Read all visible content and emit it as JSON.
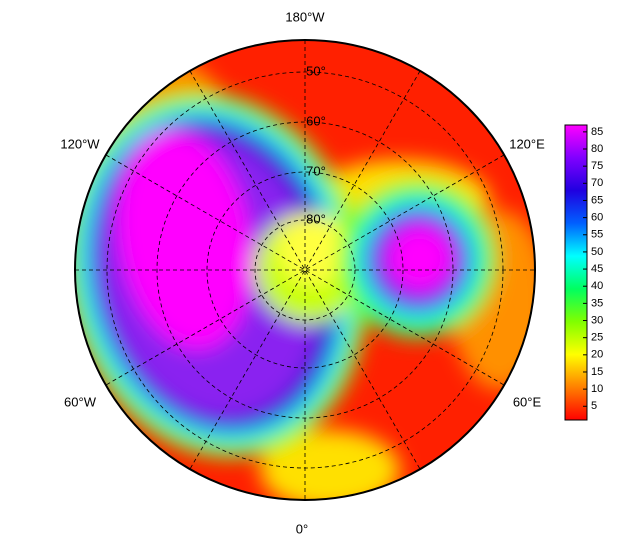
{
  "map": {
    "longitude_labels": [
      "180°W",
      "120°W",
      "120°E",
      "60°W",
      "60°E",
      "0°"
    ],
    "latitude_labels": [
      "50°",
      "60°",
      "70°",
      "80°"
    ],
    "colorbar": {
      "ticks": [
        5,
        10,
        15,
        20,
        25,
        30,
        35,
        40,
        45,
        50,
        55,
        60,
        65,
        70,
        75,
        80,
        85
      ],
      "range": [
        1,
        87
      ],
      "colors": [
        "#ff0000",
        "#ff8000",
        "#ffff00",
        "#80ff00",
        "#00ff60",
        "#00ffff",
        "#0060ff",
        "#2000e0",
        "#8000ff",
        "#ff00ff"
      ]
    }
  }
}
